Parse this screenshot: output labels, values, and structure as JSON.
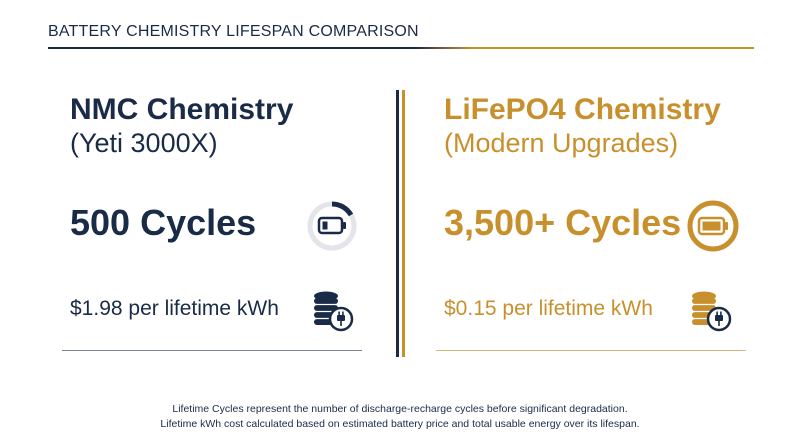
{
  "header": {
    "title": "BATTERY CHEMISTRY LIFESPAN COMPARISON"
  },
  "colors": {
    "navy": "#1a2b47",
    "gold": "#c8902c"
  },
  "left": {
    "chemistry": "NMC Chemistry",
    "model": "(Yeti 3000X)",
    "cycles": "500 Cycles",
    "cost": "$1.98 per lifetime kWh",
    "battery_icon": "battery-low-icon",
    "coins_icon": "coins-plug-icon"
  },
  "right": {
    "chemistry": "LiFePO4 Chemistry",
    "model": "(Modern Upgrades)",
    "cycles": "3,500+ Cycles",
    "cost": "$0.15 per lifetime kWh",
    "battery_icon": "battery-full-icon",
    "coins_icon": "coins-plug-icon"
  },
  "footnotes": [
    "Lifetime Cycles represent the number of discharge-recharge cycles before significant degradation.",
    "Lifetime kWh cost calculated based on estimated battery price and total usable energy over its lifespan."
  ]
}
